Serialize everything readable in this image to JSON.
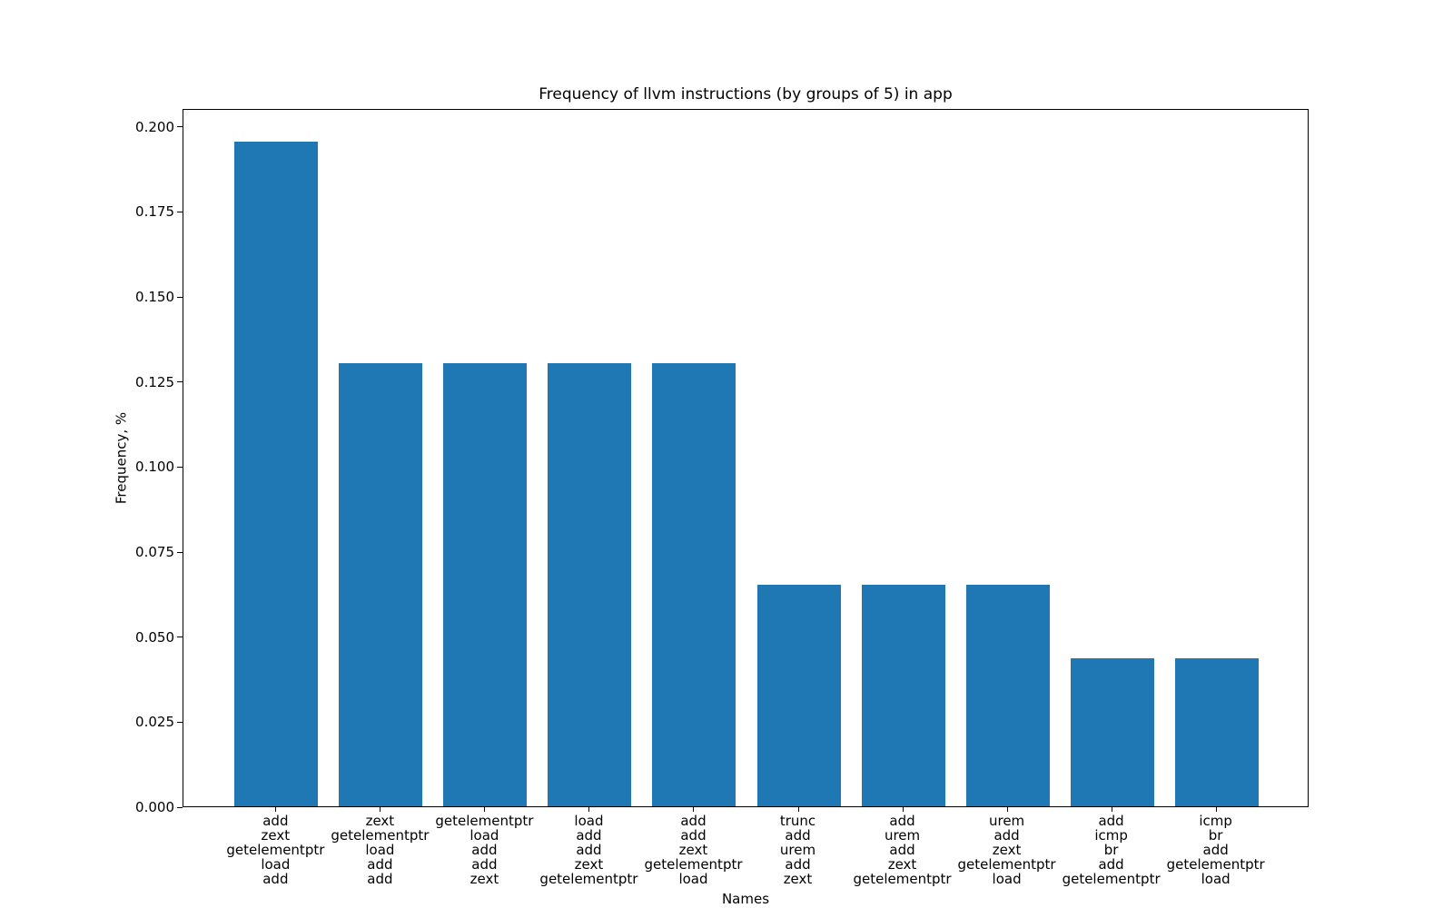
{
  "chart_data": {
    "type": "bar",
    "title": "Frequency of llvm instructions (by groups of 5) in app",
    "xlabel": "Names",
    "ylabel": "Frequency, %",
    "bar_color": "#1f77b4",
    "grid": false,
    "legend": false,
    "ylim": [
      0,
      0.2053
    ],
    "ytick_labels": [
      "0.000",
      "0.025",
      "0.050",
      "0.075",
      "0.100",
      "0.125",
      "0.150",
      "0.175",
      "0.200"
    ],
    "categories": [
      [
        "add",
        "zext",
        "getelementptr",
        "load",
        "add"
      ],
      [
        "zext",
        "getelementptr",
        "load",
        "add",
        "add"
      ],
      [
        "getelementptr",
        "load",
        "add",
        "add",
        "zext"
      ],
      [
        "load",
        "add",
        "add",
        "zext",
        "getelementptr"
      ],
      [
        "add",
        "add",
        "zext",
        "getelementptr",
        "load"
      ],
      [
        "trunc",
        "add",
        "urem",
        "add",
        "zext"
      ],
      [
        "add",
        "urem",
        "add",
        "zext",
        "getelementptr"
      ],
      [
        "urem",
        "add",
        "zext",
        "getelementptr",
        "load"
      ],
      [
        "add",
        "icmp",
        "br",
        "add",
        "getelementptr"
      ],
      [
        "icmp",
        "br",
        "add",
        "getelementptr",
        "load"
      ]
    ],
    "values": [
      0.1954,
      0.1303,
      0.1303,
      0.1303,
      0.1303,
      0.0651,
      0.0651,
      0.0651,
      0.0435,
      0.0435
    ]
  }
}
